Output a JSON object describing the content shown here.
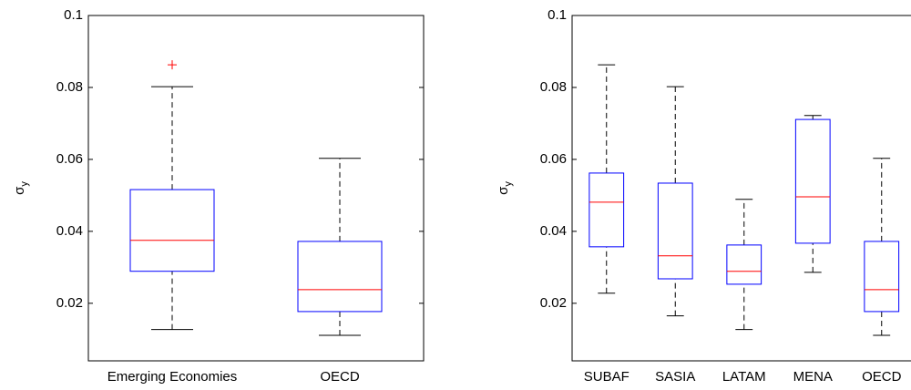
{
  "chart_data": [
    {
      "type": "box",
      "ylabel": "σy",
      "ylim": [
        0.004,
        0.1
      ],
      "yticks": [
        0.02,
        0.04,
        0.06,
        0.08,
        0.1
      ],
      "box_color": "#0000ff",
      "median_color": "#ff0000",
      "outlier_color": "#ff0000",
      "whisker_color": "#000000",
      "categories": [
        "Emerging Economies",
        "OECD"
      ],
      "boxes": [
        {
          "low": 0.0127,
          "q1": 0.0289,
          "median": 0.0375,
          "q3": 0.0516,
          "high": 0.0802,
          "outliers": [
            0.0863
          ]
        },
        {
          "low": 0.0111,
          "q1": 0.0177,
          "median": 0.0238,
          "q3": 0.0372,
          "high": 0.0603
        }
      ]
    },
    {
      "type": "box",
      "ylabel": "σy",
      "ylim": [
        0.004,
        0.1
      ],
      "yticks": [
        0.02,
        0.04,
        0.06,
        0.08,
        0.1
      ],
      "box_color": "#0000ff",
      "median_color": "#ff0000",
      "outlier_color": "#ff0000",
      "whisker_color": "#000000",
      "categories": [
        "SUBAF",
        "SASIA",
        "LATAM",
        "MENA",
        "OECD"
      ],
      "boxes": [
        {
          "low": 0.0228,
          "q1": 0.0357,
          "median": 0.0481,
          "q3": 0.0562,
          "high": 0.0863
        },
        {
          "low": 0.0165,
          "q1": 0.0268,
          "median": 0.0332,
          "q3": 0.0534,
          "high": 0.0802
        },
        {
          "low": 0.0127,
          "q1": 0.0253,
          "median": 0.0289,
          "q3": 0.0362,
          "high": 0.0489
        },
        {
          "low": 0.0286,
          "q1": 0.0367,
          "median": 0.0496,
          "q3": 0.0711,
          "high": 0.0722
        },
        {
          "low": 0.0111,
          "q1": 0.0177,
          "median": 0.0238,
          "q3": 0.0372,
          "high": 0.0603
        }
      ]
    }
  ]
}
